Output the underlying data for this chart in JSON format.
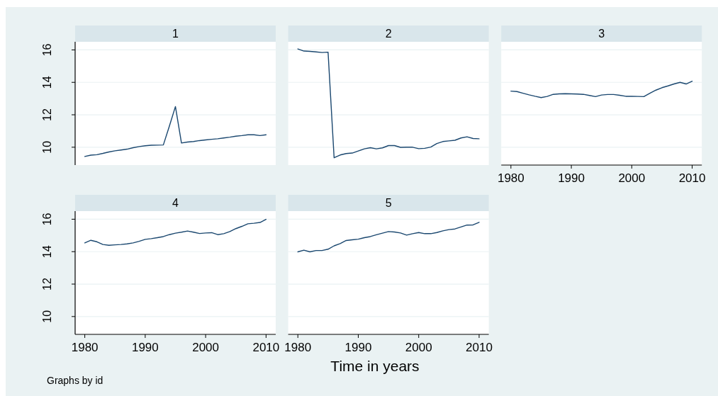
{
  "chart_data": [
    {
      "type": "line",
      "title": "1",
      "x": [
        1980,
        1981,
        1982,
        1983,
        1984,
        1985,
        1986,
        1987,
        1988,
        1989,
        1990,
        1991,
        1992,
        1993,
        1994,
        1995,
        1996,
        1997,
        1998,
        1999,
        2000,
        2001,
        2002,
        2003,
        2004,
        2005,
        2006,
        2007,
        2008,
        2009,
        2010
      ],
      "series": [
        {
          "color": "#1a476f",
          "values": [
            9.43,
            9.51,
            9.54,
            9.62,
            9.71,
            9.78,
            9.83,
            9.88,
            9.97,
            10.04,
            10.09,
            10.12,
            10.13,
            10.14,
            11.3,
            12.51,
            10.26,
            10.32,
            10.35,
            10.41,
            10.45,
            10.49,
            10.52,
            10.57,
            10.62,
            10.68,
            10.72,
            10.77,
            10.77,
            10.72,
            10.77
          ]
        }
      ],
      "xlim": [
        1978.4,
        2011.6
      ],
      "ylim": [
        8.9,
        16.5
      ],
      "yticks": [
        10,
        12,
        14,
        16
      ],
      "grid": "y",
      "tick_labels": "y"
    },
    {
      "type": "line",
      "title": "2",
      "x": [
        1980,
        1981,
        1982,
        1983,
        1984,
        1985,
        1986,
        1987,
        1988,
        1989,
        1990,
        1991,
        1992,
        1993,
        1994,
        1995,
        1996,
        1997,
        1998,
        1999,
        2000,
        2001,
        2002,
        2003,
        2004,
        2005,
        2006,
        2007,
        2008,
        2009,
        2010
      ],
      "series": [
        {
          "color": "#1a476f",
          "values": [
            16.06,
            15.93,
            15.91,
            15.88,
            15.84,
            15.86,
            9.35,
            9.52,
            9.61,
            9.64,
            9.77,
            9.9,
            9.97,
            9.9,
            9.96,
            10.1,
            10.1,
            9.99,
            10.0,
            10.0,
            9.91,
            9.93,
            10.01,
            10.23,
            10.35,
            10.39,
            10.43,
            10.57,
            10.64,
            10.54,
            10.52
          ]
        }
      ],
      "xlim": [
        1978.4,
        2011.6
      ],
      "ylim": [
        8.9,
        16.5
      ],
      "yticks": [
        10,
        12,
        14,
        16
      ],
      "grid": "y",
      "tick_labels": false
    },
    {
      "type": "line",
      "title": "3",
      "x": [
        1980,
        1981,
        1982,
        1983,
        1984,
        1985,
        1986,
        1987,
        1988,
        1989,
        1990,
        1991,
        1992,
        1993,
        1994,
        1995,
        1996,
        1997,
        1998,
        1999,
        2000,
        2001,
        2002,
        2003,
        2004,
        2005,
        2006,
        2007,
        2008,
        2009,
        2010
      ],
      "series": [
        {
          "color": "#1a476f",
          "values": [
            13.46,
            13.43,
            13.33,
            13.23,
            13.14,
            13.06,
            13.13,
            13.26,
            13.29,
            13.3,
            13.29,
            13.28,
            13.26,
            13.19,
            13.12,
            13.22,
            13.25,
            13.25,
            13.2,
            13.14,
            13.14,
            13.13,
            13.12,
            13.33,
            13.52,
            13.67,
            13.78,
            13.9,
            14.0,
            13.9,
            14.07
          ]
        }
      ],
      "xlim": [
        1978.4,
        2011.6
      ],
      "xticks": [
        1980,
        1990,
        2000,
        2010
      ],
      "ylim": [
        8.9,
        16.5
      ],
      "yticks": [
        10,
        12,
        14,
        16
      ],
      "grid": "y",
      "tick_labels": "x"
    },
    {
      "type": "line",
      "title": "4",
      "x": [
        1980,
        1981,
        1982,
        1983,
        1984,
        1985,
        1986,
        1987,
        1988,
        1989,
        1990,
        1991,
        1992,
        1993,
        1994,
        1995,
        1996,
        1997,
        1998,
        1999,
        2000,
        2001,
        2002,
        2003,
        2004,
        2005,
        2006,
        2007,
        2008,
        2009,
        2010
      ],
      "series": [
        {
          "color": "#1a476f",
          "values": [
            14.54,
            14.7,
            14.61,
            14.44,
            14.39,
            14.42,
            14.44,
            14.48,
            14.54,
            14.64,
            14.76,
            14.8,
            14.86,
            14.93,
            15.05,
            15.14,
            15.2,
            15.27,
            15.2,
            15.12,
            15.15,
            15.17,
            15.05,
            15.11,
            15.24,
            15.42,
            15.56,
            15.72,
            15.75,
            15.8,
            15.99
          ]
        }
      ],
      "xlim": [
        1978.4,
        2011.6
      ],
      "xticks": [
        1980,
        1990,
        2000,
        2010
      ],
      "ylim": [
        8.9,
        16.5
      ],
      "yticks": [
        10,
        12,
        14,
        16
      ],
      "grid": "y",
      "annotations": [
        "Graphs by id"
      ]
    },
    {
      "type": "line",
      "title": "5",
      "x": [
        1980,
        1981,
        1982,
        1983,
        1984,
        1985,
        1986,
        1987,
        1988,
        1989,
        1990,
        1991,
        1992,
        1993,
        1994,
        1995,
        1996,
        1997,
        1998,
        1999,
        2000,
        2001,
        2002,
        2003,
        2004,
        2005,
        2006,
        2007,
        2008,
        2009,
        2010
      ],
      "series": [
        {
          "color": "#1a476f",
          "values": [
            13.99,
            14.09,
            13.99,
            14.07,
            14.07,
            14.15,
            14.36,
            14.5,
            14.69,
            14.73,
            14.77,
            14.86,
            14.93,
            15.04,
            15.14,
            15.24,
            15.21,
            15.15,
            15.02,
            15.11,
            15.18,
            15.11,
            15.11,
            15.18,
            15.28,
            15.36,
            15.4,
            15.52,
            15.64,
            15.65,
            15.81
          ]
        }
      ],
      "xlim": [
        1978.4,
        2011.6
      ],
      "xticks": [
        1980,
        1990,
        2000,
        2010
      ],
      "ylim": [
        8.9,
        16.5
      ],
      "yticks": [
        10,
        12,
        14,
        16
      ],
      "grid": "y",
      "tick_labels": "x",
      "xlabel": "Time in years"
    }
  ]
}
